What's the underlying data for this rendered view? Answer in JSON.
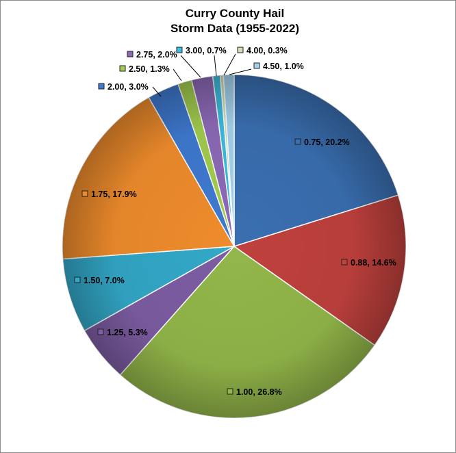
{
  "chart_data": {
    "type": "pie",
    "title": "Curry County Hail\nStorm Data (1955-2022)",
    "slices": [
      {
        "label": "0.75",
        "value": 20.2,
        "color": "#3a6fb1"
      },
      {
        "label": "0.88",
        "value": 14.6,
        "color": "#c0413d"
      },
      {
        "label": "1.00",
        "value": 26.8,
        "color": "#93b74a"
      },
      {
        "label": "1.25",
        "value": 5.3,
        "color": "#7d5da3"
      },
      {
        "label": "1.50",
        "value": 7.0,
        "color": "#33a8c8"
      },
      {
        "label": "1.75",
        "value": 17.9,
        "color": "#ef8c2c"
      },
      {
        "label": "2.00",
        "value": 3.0,
        "color": "#3f7ad0"
      },
      {
        "label": "2.50",
        "value": 1.3,
        "color": "#a3cd4f"
      },
      {
        "label": "2.75",
        "value": 2.0,
        "color": "#8d6ab8"
      },
      {
        "label": "3.00",
        "value": 0.7,
        "color": "#3cbde0"
      },
      {
        "label": "4.00",
        "value": 0.3,
        "color": "#d0dfb4"
      },
      {
        "label": "4.50",
        "value": 1.0,
        "color": "#a4d2ee"
      }
    ],
    "label_format": "size, percent",
    "legend": "none",
    "data_labels": "outside-callout for small slices, inside for large"
  },
  "title_lines": [
    "Curry County Hail",
    "Storm Data (1955-2022)"
  ]
}
